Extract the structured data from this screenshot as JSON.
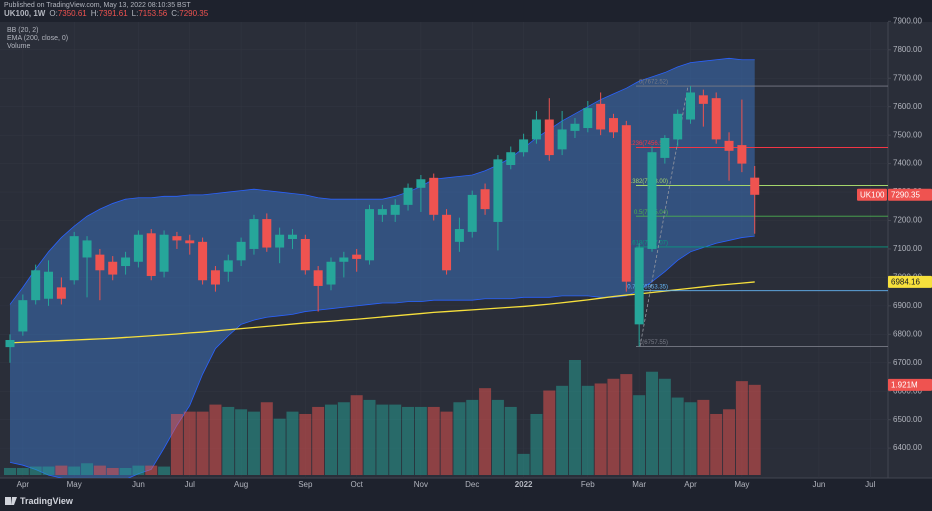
{
  "header": {
    "published": "Published on TradingView.com, May 13, 2022 08:10:35 BST",
    "symbol": "UK100, 1W",
    "ohlc_keys": [
      "O:",
      "H:",
      "L:",
      "C:"
    ]
  },
  "chart_data": {
    "type": "candlestick",
    "symbol_tag": "UK100",
    "up_color": "#26a69a",
    "down_color": "#ef5350",
    "categories": [
      null,
      "Apr",
      null,
      null,
      null,
      "May",
      null,
      null,
      null,
      null,
      "Jun",
      null,
      null,
      null,
      "Jul",
      null,
      null,
      null,
      "Aug",
      null,
      null,
      null,
      null,
      "Sep",
      null,
      null,
      null,
      "Oct",
      null,
      null,
      null,
      null,
      "Nov",
      null,
      null,
      null,
      "Dec",
      null,
      null,
      null,
      "2022",
      null,
      null,
      null,
      null,
      "Feb",
      null,
      null,
      null,
      "Mar",
      null,
      null,
      null,
      "Apr",
      null,
      null,
      null,
      "May",
      null,
      null,
      null,
      null,
      null,
      "Jun",
      null,
      null,
      null,
      "Jul",
      null
    ],
    "open": [
      6755,
      6810,
      6920,
      6925,
      6965,
      6990,
      7070,
      7080,
      7055,
      7040,
      7055,
      7155,
      7020,
      7145,
      7130,
      7125,
      7025,
      7020,
      7060,
      7100,
      7205,
      7105,
      7135,
      7135,
      7025,
      6975,
      7055,
      7080,
      7060,
      7220,
      7220,
      7255,
      7315,
      7350,
      7220,
      7125,
      7160,
      7310,
      7195,
      7395,
      7440,
      7485,
      7555,
      7450,
      7515,
      7525,
      7610,
      7560,
      7535,
      6835,
      7100,
      7420,
      7485,
      7555,
      7640,
      7630,
      7480,
      7465,
      7350.61,
      null,
      null,
      null,
      null,
      null,
      null,
      null,
      null,
      null,
      null
    ],
    "high": [
      6800,
      6940,
      7045,
      7060,
      7000,
      7160,
      7145,
      7100,
      7075,
      7090,
      7165,
      7170,
      7165,
      7160,
      7150,
      7140,
      7040,
      7080,
      7140,
      7220,
      7225,
      7175,
      7170,
      7150,
      7040,
      7070,
      7090,
      7100,
      7255,
      7255,
      7275,
      7330,
      7360,
      7365,
      7240,
      7210,
      7305,
      7330,
      7430,
      7460,
      7505,
      7585,
      7630,
      7585,
      7560,
      7620,
      7650,
      7575,
      7550,
      7120,
      7460,
      7500,
      7590,
      7672.52,
      7660,
      7650,
      7510,
      7625,
      7391.61,
      null,
      null,
      null,
      null,
      null,
      null,
      null,
      null,
      null,
      null
    ],
    "low": [
      6700,
      6795,
      6905,
      6900,
      6905,
      6975,
      6930,
      6920,
      6990,
      7010,
      7035,
      6990,
      7000,
      7100,
      7080,
      6975,
      6950,
      6985,
      7040,
      7080,
      7090,
      7050,
      7100,
      7010,
      6880,
      6955,
      7000,
      7020,
      7045,
      7195,
      7195,
      7235,
      7230,
      7200,
      7010,
      7090,
      7140,
      7220,
      7095,
      7380,
      7425,
      7470,
      7410,
      7430,
      7490,
      7510,
      7500,
      7490,
      6950,
      6757.55,
      7090,
      7400,
      7460,
      7540,
      7530,
      7470,
      7340,
      7370,
      7153.56,
      null,
      null,
      null,
      null,
      null,
      null,
      null,
      null,
      null,
      null
    ],
    "close": [
      6780,
      6920,
      7025,
      7020,
      6925,
      7145,
      7130,
      7025,
      7010,
      7070,
      7150,
      7005,
      7150,
      7130,
      7120,
      6990,
      6975,
      7060,
      7125,
      7205,
      7105,
      7150,
      7150,
      7025,
      6970,
      7055,
      7070,
      7065,
      7240,
      7240,
      7255,
      7315,
      7345,
      7220,
      7025,
      7170,
      7290,
      7240,
      7415,
      7440,
      7485,
      7555,
      7430,
      7520,
      7540,
      7595,
      7520,
      7510,
      6985,
      7105,
      7440,
      7490,
      7575,
      7650,
      7610,
      7485,
      7445,
      7400,
      7290.35,
      null,
      null,
      null,
      null,
      null,
      null,
      null,
      null,
      null,
      null
    ],
    "bb": {
      "name": "BB (20, 2)",
      "color": "#2962ff",
      "fill": "#3b6fb8",
      "upper": [
        6905,
        6965,
        7030,
        7090,
        7140,
        7180,
        7215,
        7240,
        7260,
        7275,
        7280,
        7280,
        7285,
        7285,
        7290,
        7290,
        7295,
        7300,
        7305,
        7310,
        7305,
        7300,
        7295,
        7290,
        7280,
        7275,
        7275,
        7275,
        7275,
        7275,
        7285,
        7300,
        7320,
        7345,
        7350,
        7355,
        7360,
        7375,
        7395,
        7420,
        7455,
        7490,
        7520,
        7550,
        7575,
        7600,
        7625,
        7645,
        7665,
        7690,
        7705,
        7720,
        7740,
        7755,
        7760,
        7765,
        7770,
        7765,
        7765,
        null,
        null,
        null,
        null,
        null,
        null,
        null,
        null,
        null,
        null
      ],
      "lower": [
        6350,
        6340,
        6325,
        6305,
        6295,
        6285,
        6275,
        6265,
        6275,
        6290,
        6310,
        6325,
        6400,
        6480,
        6550,
        6660,
        6750,
        6795,
        6835,
        6850,
        6860,
        6865,
        6870,
        6880,
        6885,
        6890,
        6895,
        6900,
        6905,
        6910,
        6910,
        6915,
        6915,
        6920,
        6920,
        6920,
        6920,
        6925,
        6925,
        6925,
        6930,
        6930,
        6930,
        6935,
        6935,
        6935,
        6930,
        6930,
        6935,
        6955,
        6985,
        7020,
        7060,
        7090,
        7105,
        7120,
        7130,
        7140,
        7145,
        null,
        null,
        null,
        null,
        null,
        null,
        null,
        null,
        null,
        null
      ]
    },
    "ema": {
      "name": "EMA (200, close, 0)",
      "color": "#f7e03c",
      "values": [
        6770,
        6772,
        6774,
        6776,
        6778,
        6780,
        6782,
        6784,
        6786,
        6789,
        6792,
        6795,
        6798,
        6801,
        6805,
        6808,
        6812,
        6816,
        6820,
        6824,
        6828,
        6832,
        6836,
        6840,
        6843,
        6846,
        6850,
        6853,
        6857,
        6861,
        6865,
        6869,
        6873,
        6877,
        6880,
        6883,
        6886,
        6889,
        6892,
        6895,
        6898,
        6902,
        6906,
        6911,
        6916,
        6921,
        6927,
        6933,
        6938,
        6942,
        6947,
        6952,
        6957,
        6962,
        6967,
        6972,
        6976,
        6980,
        6984.16,
        null,
        null,
        null,
        null,
        null,
        null,
        null,
        null,
        null,
        null
      ]
    },
    "volume": {
      "name": "Volume",
      "last_label": "1.921M",
      "values": [
        0.15,
        0.15,
        0.18,
        0.18,
        0.2,
        0.18,
        0.25,
        0.2,
        0.15,
        0.15,
        0.2,
        0.2,
        0.18,
        1.3,
        1.35,
        1.35,
        1.5,
        1.45,
        1.4,
        1.35,
        1.55,
        1.2,
        1.35,
        1.3,
        1.45,
        1.5,
        1.55,
        1.7,
        1.6,
        1.5,
        1.5,
        1.45,
        1.45,
        1.45,
        1.35,
        1.55,
        1.6,
        1.85,
        1.6,
        1.45,
        0.45,
        1.3,
        1.8,
        1.9,
        2.45,
        1.9,
        1.95,
        2.05,
        2.15,
        1.7,
        2.2,
        2.05,
        1.65,
        1.55,
        1.6,
        1.3,
        1.4,
        2.0,
        1.921,
        null,
        null,
        null,
        null,
        null,
        null,
        null,
        null,
        null,
        null
      ]
    },
    "fib": [
      {
        "label": "0(7672.52)",
        "value": 7672.52,
        "color": "#787b86"
      },
      {
        "label": "0.236(7456.59)",
        "value": 7456.59,
        "color": "#f23645"
      },
      {
        "label": "0.382(7323.00)",
        "value": 7323.0,
        "color": "#a5d66b"
      },
      {
        "label": "0.5(7215.04)",
        "value": 7215.04,
        "color": "#4caf50"
      },
      {
        "label": "0.618(7107.07)",
        "value": 7107.07,
        "color": "#089981"
      },
      {
        "label": "0.786(6953.35)",
        "value": 6953.35,
        "color": "#64b5f6"
      },
      {
        "label": "1(6757.55)",
        "value": 6757.55,
        "color": "#787b86"
      }
    ],
    "ylim": [
      6295,
      7975
    ],
    "yticks": [
      {
        "value": 6400,
        "label": "6400.00"
      },
      {
        "value": 6500,
        "label": "6500.00"
      },
      {
        "value": 6600,
        "label": "6600.00"
      },
      {
        "value": 6700,
        "label": "6700.00"
      },
      {
        "value": 6800,
        "label": "6800.00"
      },
      {
        "value": 6900,
        "label": "6900.00"
      },
      {
        "value": 7000,
        "label": "7000.00"
      },
      {
        "value": 7100,
        "label": "7100.00"
      },
      {
        "value": 7200,
        "label": "7200.00"
      },
      {
        "value": 7300,
        "label": "7300.00"
      },
      {
        "value": 7400,
        "label": "7400.00"
      },
      {
        "value": 7500,
        "label": "7500.00"
      },
      {
        "value": 7600,
        "label": "7600.00"
      },
      {
        "value": 7700,
        "label": "7700.00"
      },
      {
        "value": 7800,
        "label": "7800.00"
      },
      {
        "value": 7900,
        "label": "7900.00"
      }
    ],
    "grid": true
  },
  "footer": {
    "brand": "TradingView"
  }
}
